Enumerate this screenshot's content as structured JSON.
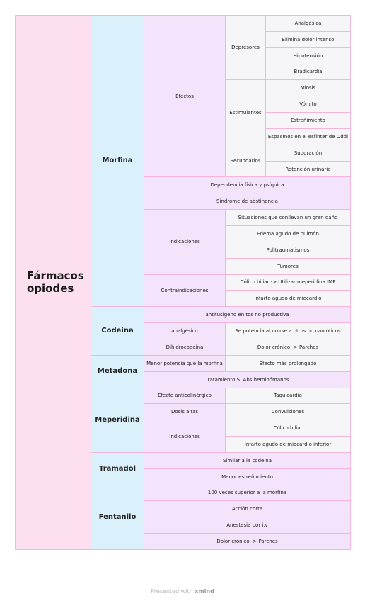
{
  "root": {
    "label": "Fármacos opiodes",
    "children": [
      {
        "label": "Morfina",
        "children": [
          {
            "label": "Efectos",
            "children": [
              {
                "label": "Depresores",
                "children": [
                  {
                    "label": "Analgésica"
                  },
                  {
                    "label": "Elimina dolor intenso"
                  },
                  {
                    "label": "Hipotensión"
                  },
                  {
                    "label": "Bradicardia"
                  }
                ]
              },
              {
                "label": "Estimulantes",
                "children": [
                  {
                    "label": "Miosis"
                  },
                  {
                    "label": "Vómito"
                  },
                  {
                    "label": "Estreñimiento"
                  },
                  {
                    "label": "Espasmos en el esfínter de Oddi"
                  }
                ]
              },
              {
                "label": "Secundarios",
                "children": [
                  {
                    "label": "Sudoración"
                  },
                  {
                    "label": "Retención urinaria"
                  }
                ]
              }
            ]
          },
          {
            "label": "Dependencia física y psíquica"
          },
          {
            "label": "Síndrome de abstinencia"
          },
          {
            "label": "Indicaciones",
            "children": [
              {
                "label": "Situaciones que conllevan un gran daño"
              },
              {
                "label": "Edema agudo de pulmón"
              },
              {
                "label": "Politraumatismos"
              },
              {
                "label": "Tumores"
              }
            ]
          },
          {
            "label": "Contraindicaciones",
            "children": [
              {
                "label": "Cólico biliar -> Utilizar meperidina IMP"
              },
              {
                "label": "Infarto agudo de miocardio"
              }
            ]
          }
        ]
      },
      {
        "label": "Codeina",
        "children": [
          {
            "label": "antitusigeno en tos no productiva"
          },
          {
            "label": "analgésico",
            "children": [
              {
                "label": "Se potencia al unirse a otros no narcóticos"
              }
            ]
          },
          {
            "label": "Dihidrocodeina",
            "children": [
              {
                "label": "Dolor crónico -> Parches"
              }
            ]
          }
        ]
      },
      {
        "label": "Metadona",
        "children": [
          {
            "label": "Menor potencia que la morfina",
            "children": [
              {
                "label": "Efecto más prolongado"
              }
            ]
          },
          {
            "label": "Tratamiento S. Abs heroinómanos"
          }
        ]
      },
      {
        "label": "Meperidina",
        "children": [
          {
            "label": "Efecto anticolinérgico",
            "children": [
              {
                "label": "Taquicardia"
              }
            ]
          },
          {
            "label": "Dosis altas",
            "children": [
              {
                "label": "Convulsiones"
              }
            ]
          },
          {
            "label": "Indicaciones",
            "children": [
              {
                "label": "Cólico biliar"
              },
              {
                "label": "Infarto agudo de miocardio inferior"
              }
            ]
          }
        ]
      },
      {
        "label": "Tramadol",
        "children": [
          {
            "label": "Similar a la codeina"
          },
          {
            "label": "Menor estreñimiento"
          }
        ]
      },
      {
        "label": "Fentanilo",
        "children": [
          {
            "label": "100 veces superior a la morfina"
          },
          {
            "label": "Acción corta"
          },
          {
            "label": "Anestesia por i.v"
          },
          {
            "label": "Dolor crónico -> Parches"
          }
        ]
      }
    ]
  },
  "footer": {
    "text": "Presented with",
    "brand": "xmind"
  }
}
